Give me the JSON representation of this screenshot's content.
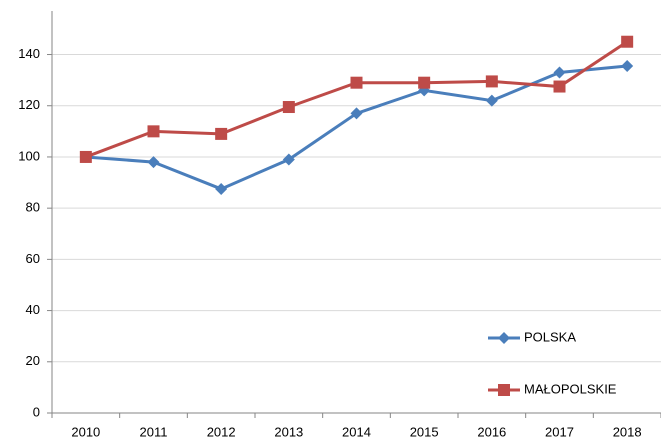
{
  "chart_data": {
    "type": "line",
    "categories": [
      "2010",
      "2011",
      "2012",
      "2013",
      "2014",
      "2015",
      "2016",
      "2017",
      "2018"
    ],
    "series": [
      {
        "name": "POLSKA",
        "color": "#4a7ebb",
        "marker": "diamond",
        "values": [
          100,
          98,
          87.5,
          99,
          117,
          126,
          122,
          133,
          135.5
        ]
      },
      {
        "name": "MAŁOPOLSKIE",
        "color": "#be4b48",
        "marker": "square",
        "values": [
          100,
          110,
          109,
          119.5,
          129,
          129,
          129.5,
          127.5,
          145
        ]
      }
    ],
    "ylim": [
      0,
      157
    ],
    "yticks": [
      0,
      20,
      40,
      60,
      80,
      100,
      120,
      140
    ],
    "grid": true,
    "legend": "lower right"
  }
}
